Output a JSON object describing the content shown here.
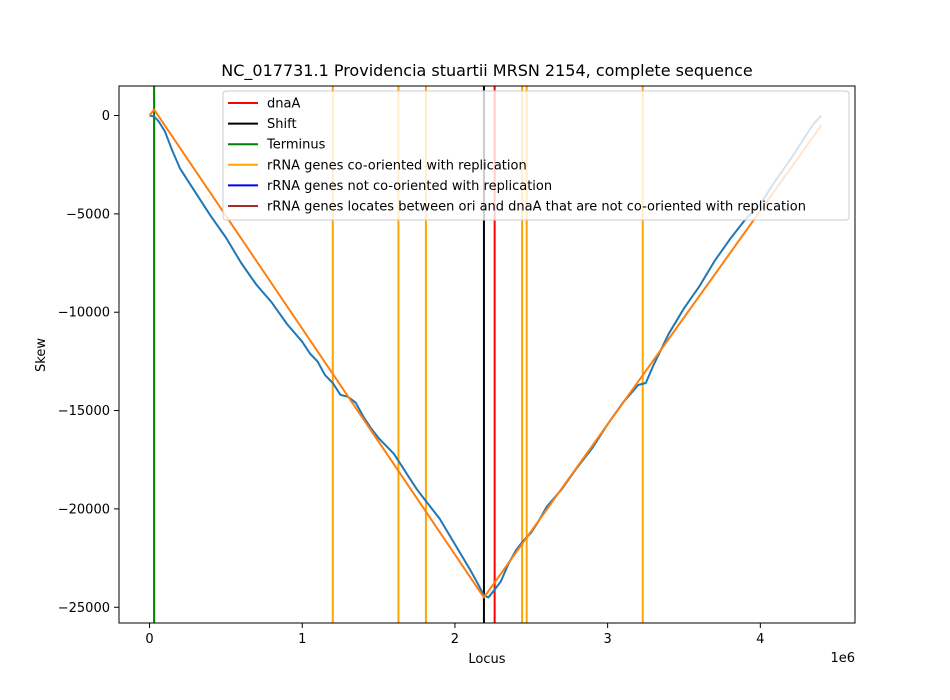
{
  "chart_data": {
    "type": "line",
    "title": "NC_017731.1 Providencia stuartii MRSN 2154, complete sequence",
    "xlabel": "Locus",
    "ylabel": "Skew",
    "x_offset_text": "1e6",
    "xlim": [
      -200000,
      4620000
    ],
    "ylim": [
      -25800,
      1500
    ],
    "x_ticks": [
      {
        "value": 0,
        "label": "0"
      },
      {
        "value": 1000000,
        "label": "1"
      },
      {
        "value": 2000000,
        "label": "2"
      },
      {
        "value": 3000000,
        "label": "3"
      },
      {
        "value": 4000000,
        "label": "4"
      }
    ],
    "y_ticks": [
      {
        "value": 0,
        "label": "0"
      },
      {
        "value": -5000,
        "label": "−5000"
      },
      {
        "value": -10000,
        "label": "−10000"
      },
      {
        "value": -15000,
        "label": "−15000"
      },
      {
        "value": -20000,
        "label": "−20000"
      },
      {
        "value": -25000,
        "label": "−25000"
      }
    ],
    "grid": false,
    "legend_position": "upper right",
    "legend": [
      {
        "label": "dnaA",
        "color": "#ff0000"
      },
      {
        "label": "Shift",
        "color": "#000000"
      },
      {
        "label": "Terminus",
        "color": "#008000"
      },
      {
        "label": "rRNA genes co-oriented with replication",
        "color": "#ffa500"
      },
      {
        "label": "rRNA genes not co-oriented with replication",
        "color": "#0000ff"
      },
      {
        "label": "rRNA genes locates between ori and dnaA that are not co-oriented with replication",
        "color": "#a52a2a"
      }
    ],
    "vlines": [
      {
        "x": 30000,
        "color": "#008000",
        "kind": "Terminus"
      },
      {
        "x": 1200000,
        "color": "#ffa500",
        "kind": "rRNA co-oriented"
      },
      {
        "x": 1630000,
        "color": "#ffa500",
        "kind": "rRNA co-oriented"
      },
      {
        "x": 1810000,
        "color": "#ffa500",
        "kind": "rRNA co-oriented"
      },
      {
        "x": 2190000,
        "color": "#000000",
        "kind": "Shift"
      },
      {
        "x": 2260000,
        "color": "#ff0000",
        "kind": "dnaA"
      },
      {
        "x": 2440000,
        "color": "#ffa500",
        "kind": "rRNA co-oriented"
      },
      {
        "x": 2470000,
        "color": "#ffa500",
        "kind": "rRNA co-oriented"
      },
      {
        "x": 3230000,
        "color": "#ffa500",
        "kind": "rRNA co-oriented"
      }
    ],
    "series": [
      {
        "color": "#1f77b4",
        "x": [
          0,
          30000,
          60000,
          100000,
          150000,
          200000,
          250000,
          300000,
          400000,
          500000,
          600000,
          700000,
          800000,
          900000,
          1000000,
          1050000,
          1100000,
          1150000,
          1200000,
          1250000,
          1300000,
          1350000,
          1400000,
          1450000,
          1500000,
          1600000,
          1650000,
          1700000,
          1750000,
          1800000,
          1850000,
          1900000,
          2000000,
          2100000,
          2150000,
          2190000,
          2220000,
          2260000,
          2300000,
          2350000,
          2400000,
          2450000,
          2500000,
          2550000,
          2600000,
          2700000,
          2800000,
          2900000,
          3000000,
          3100000,
          3200000,
          3250000,
          3300000,
          3400000,
          3500000,
          3600000,
          3700000,
          3800000,
          3900000,
          4000000,
          4100000,
          4200000,
          4300000,
          4350000,
          4400000
        ],
        "y": [
          0,
          -50,
          -300,
          -800,
          -1800,
          -2700,
          -3300,
          -3900,
          -5100,
          -6200,
          -7500,
          -8600,
          -9500,
          -10600,
          -11500,
          -12100,
          -12500,
          -13200,
          -13600,
          -14200,
          -14300,
          -14600,
          -15300,
          -15900,
          -16400,
          -17200,
          -17800,
          -18400,
          -19000,
          -19500,
          -20000,
          -20500,
          -21800,
          -23100,
          -23800,
          -24400,
          -24500,
          -24100,
          -23700,
          -22800,
          -22100,
          -21600,
          -21200,
          -20600,
          -19900,
          -19000,
          -17900,
          -16900,
          -15700,
          -14600,
          -13700,
          -13600,
          -12700,
          -11100,
          -9800,
          -8700,
          -7400,
          -6300,
          -5300,
          -4500,
          -3300,
          -2200,
          -1000,
          -400,
          0
        ]
      },
      {
        "color": "#ff7f0e",
        "x": [
          0,
          30000,
          2190000,
          4400000
        ],
        "y": [
          0,
          300,
          -24500,
          -500
        ]
      }
    ]
  }
}
